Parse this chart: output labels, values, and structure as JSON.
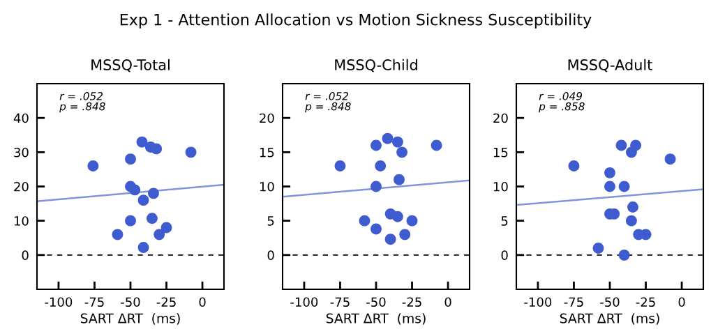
{
  "chart_data": [
    {
      "type": "scatter",
      "title": "Exp 1 - Attention Allocation vs Motion Sickness Susceptibility",
      "subtitle": "MSSQ-Total",
      "xlabel": "SART ΔRT  (ms)",
      "xlim": [
        -115,
        15
      ],
      "xticks": [
        -100,
        -75,
        -50,
        -25,
        0
      ],
      "ylim": [
        -10,
        50
      ],
      "yticks": [
        0,
        10,
        20,
        30,
        40
      ],
      "annotations": [
        "r = .052\np = .848"
      ],
      "ref_lines": [
        {
          "axis": "y",
          "value": 0,
          "color": "#000000",
          "line_style": "dashed"
        }
      ],
      "series": [
        {
          "marker": "circle",
          "color": "#3f5bd0",
          "x": [
            -76,
            -50,
            -42,
            -36,
            -32,
            -8,
            -50,
            -47,
            -34,
            -41,
            -50,
            -35,
            -59,
            -30,
            -25,
            -41
          ],
          "values": [
            26,
            28,
            33,
            31.5,
            31,
            30,
            20,
            19,
            18,
            16,
            10,
            10.7,
            6,
            6,
            8,
            2.2
          ]
        },
        {
          "type": "line",
          "color": "#8093dd",
          "x": [
            -115,
            15
          ],
          "values": [
            15.7,
            20.5
          ]
        }
      ]
    },
    {
      "type": "scatter",
      "subtitle": "MSSQ-Child",
      "xlabel": "SART ΔRT  (ms)",
      "xlim": [
        -115,
        15
      ],
      "xticks": [
        -100,
        -75,
        -50,
        -25,
        0
      ],
      "ylim": [
        -5,
        25
      ],
      "yticks": [
        0,
        5,
        10,
        15,
        20
      ],
      "annotations": [
        "r = .052\np = .848"
      ],
      "ref_lines": [
        {
          "axis": "y",
          "value": 0,
          "color": "#000000",
          "line_style": "dashed"
        }
      ],
      "series": [
        {
          "marker": "circle",
          "color": "#3f5bd0",
          "x": [
            -75,
            -50,
            -42,
            -35,
            -32,
            -8,
            -47,
            -34,
            -50,
            -40,
            -35,
            -25,
            -58,
            -50,
            -30,
            -40
          ],
          "values": [
            13,
            16,
            17,
            16.5,
            15,
            16,
            13,
            11,
            10,
            6,
            5.6,
            5,
            5,
            3.8,
            3,
            2.3
          ]
        },
        {
          "type": "line",
          "color": "#8093dd",
          "x": [
            -115,
            15
          ],
          "values": [
            8.5,
            10.9
          ]
        }
      ]
    },
    {
      "type": "scatter",
      "subtitle": "MSSQ-Adult",
      "xlabel": "SART ΔRT  (ms)",
      "xlim": [
        -115,
        15
      ],
      "xticks": [
        -100,
        -75,
        -50,
        -25,
        0
      ],
      "ylim": [
        -5,
        25
      ],
      "yticks": [
        0,
        5,
        10,
        15,
        20
      ],
      "annotations": [
        "r = .049\np = .858"
      ],
      "ref_lines": [
        {
          "axis": "y",
          "value": 0,
          "color": "#000000",
          "line_style": "dashed"
        }
      ],
      "series": [
        {
          "marker": "circle",
          "color": "#3f5bd0",
          "x": [
            -75,
            -50,
            -50,
            -40,
            -42,
            -32,
            -35,
            -8,
            -50,
            -47,
            -34,
            -35,
            -30,
            -25,
            -58,
            -40
          ],
          "values": [
            13,
            12,
            10,
            10,
            16,
            16,
            15,
            14,
            6,
            6,
            7,
            5,
            3,
            3,
            1,
            0
          ]
        },
        {
          "type": "line",
          "color": "#8093dd",
          "x": [
            -115,
            15
          ],
          "values": [
            7.3,
            9.6
          ]
        }
      ]
    }
  ]
}
